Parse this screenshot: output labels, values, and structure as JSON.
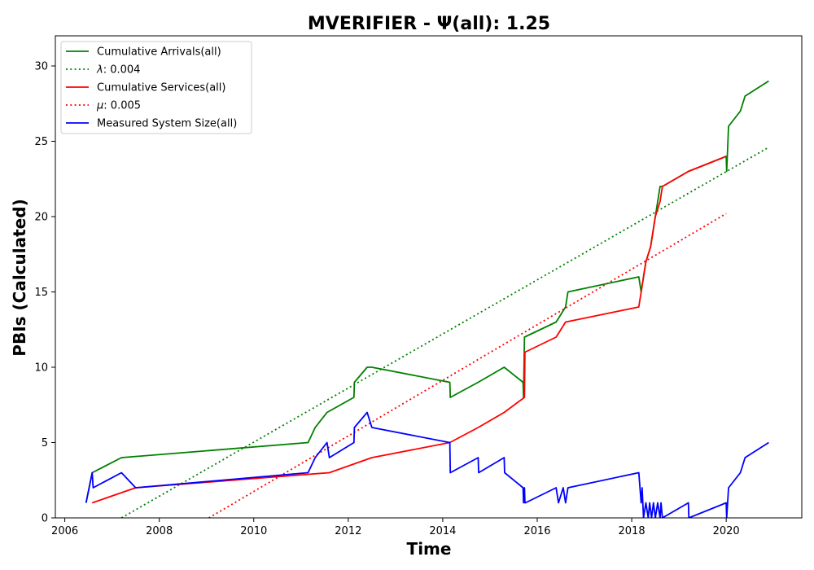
{
  "chart_data": {
    "type": "line",
    "title": "MVERIFIER -  Ψ(all): 1.25",
    "xlabel": "Time",
    "ylabel": "PBIs (Calculated)",
    "xlim": [
      2005.8,
      2021.6
    ],
    "ylim": [
      0,
      32
    ],
    "xticks": [
      2006,
      2008,
      2010,
      2012,
      2014,
      2016,
      2018,
      2020
    ],
    "yticks": [
      0,
      5,
      10,
      15,
      20,
      25,
      30
    ],
    "grid": false,
    "legend_position": "top-left",
    "series": [
      {
        "name": "Cumulative Arrivals(all)",
        "color": "#008000",
        "style": "solid",
        "x": [
          2006.45,
          2006.58,
          2007.2,
          2011.15,
          2011.3,
          2011.55,
          2012.12,
          2012.13,
          2012.4,
          2012.5,
          2014.15,
          2014.16,
          2014.75,
          2015.3,
          2015.7,
          2015.71,
          2015.73,
          2016.4,
          2016.6,
          2016.65,
          2018.15,
          2018.2,
          2018.3,
          2018.4,
          2018.55,
          2018.6,
          2018.65,
          2019.2,
          2020.0,
          2020.01,
          2020.05,
          2020.3,
          2020.4,
          2020.9
        ],
        "y": [
          1,
          3,
          4,
          5,
          6,
          7,
          8,
          9,
          10,
          10,
          9,
          8,
          9,
          10,
          9,
          8,
          12,
          13,
          14,
          15,
          16,
          15,
          17,
          18,
          21,
          22,
          22,
          23,
          24,
          23,
          26,
          27,
          28,
          29
        ]
      },
      {
        "name": "λ: 0.004",
        "color": "#008000",
        "style": "dotted",
        "x": [
          2007.2,
          2020.9
        ],
        "y": [
          0,
          24.6
        ]
      },
      {
        "name": "Cumulative Services(all)",
        "color": "#ff0000",
        "style": "solid",
        "x": [
          2006.58,
          2007.5,
          2011.6,
          2012.5,
          2014.15,
          2014.75,
          2015.3,
          2015.73,
          2015.74,
          2016.4,
          2016.6,
          2018.15,
          2018.3,
          2018.4,
          2018.5,
          2018.6,
          2018.65,
          2019.2,
          2020.0
        ],
        "y": [
          1,
          2,
          3,
          4,
          5,
          6,
          7,
          8,
          11,
          12,
          13,
          14,
          17,
          18,
          20,
          21,
          22,
          23,
          24
        ]
      },
      {
        "name": "μ: 0.005",
        "color": "#ff0000",
        "style": "dotted",
        "x": [
          2009.05,
          2020.0
        ],
        "y": [
          0,
          20.2
        ]
      },
      {
        "name": "Measured System Size(all)",
        "color": "#0000ff",
        "style": "solid",
        "x": [
          2006.45,
          2006.58,
          2006.6,
          2007.2,
          2007.5,
          2011.15,
          2011.3,
          2011.55,
          2011.6,
          2012.12,
          2012.13,
          2012.4,
          2012.5,
          2014.15,
          2014.16,
          2014.75,
          2014.76,
          2015.3,
          2015.31,
          2015.7,
          2015.71,
          2015.73,
          2015.74,
          2015.75,
          2016.4,
          2016.45,
          2016.55,
          2016.6,
          2016.65,
          2018.15,
          2018.2,
          2018.22,
          2018.25,
          2018.3,
          2018.35,
          2018.38,
          2018.42,
          2018.46,
          2018.5,
          2018.55,
          2018.6,
          2018.62,
          2018.65,
          2019.2,
          2019.21,
          2020.0,
          2020.01,
          2020.05,
          2020.3,
          2020.4,
          2020.9
        ],
        "y": [
          1,
          3,
          2,
          3,
          2,
          3,
          4,
          5,
          4,
          5,
          6,
          7,
          6,
          5,
          3,
          4,
          3,
          4,
          3,
          2,
          1,
          2,
          1,
          1,
          2,
          1,
          2,
          1,
          2,
          3,
          1,
          2,
          0,
          1,
          0,
          1,
          0,
          1,
          0,
          1,
          0,
          1,
          0,
          1,
          0,
          1,
          0,
          2,
          3,
          4,
          5
        ]
      }
    ],
    "legend": [
      {
        "label": "Cumulative Arrivals(all)",
        "color": "#008000",
        "style": "solid"
      },
      {
        "label": "λ: 0.004",
        "color": "#008000",
        "style": "dotted",
        "italic_prefix": "λ",
        "rest": ": 0.004"
      },
      {
        "label": "Cumulative Services(all)",
        "color": "#ff0000",
        "style": "solid"
      },
      {
        "label": "μ: 0.005",
        "color": "#ff0000",
        "style": "dotted",
        "italic_prefix": "μ",
        "rest": ": 0.005"
      },
      {
        "label": "Measured System Size(all)",
        "color": "#0000ff",
        "style": "solid"
      }
    ]
  }
}
